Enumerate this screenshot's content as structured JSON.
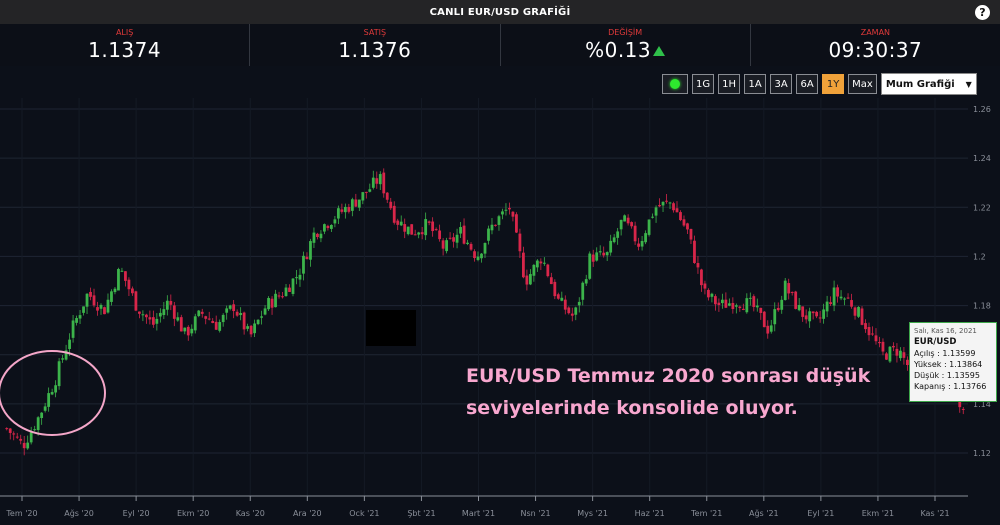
{
  "header": {
    "title": "CANLI EUR/USD GRAFİĞİ",
    "help_label": "?"
  },
  "stats": [
    {
      "label": "ALIŞ",
      "value": "1.1374"
    },
    {
      "label": "SATIŞ",
      "value": "1.1376"
    },
    {
      "label": "DEĞİŞİM",
      "value": "%0.13"
    },
    {
      "label": "ZAMAN",
      "value": "09:30:37"
    }
  ],
  "toolbar": {
    "ranges": [
      "1G",
      "1H",
      "1A",
      "3A",
      "6A",
      "1Y",
      "Max"
    ],
    "active_range": "1Y",
    "chart_type": "Mum Grafiği"
  },
  "colors": {
    "up": "#3cb44b",
    "down": "#d8264a",
    "accent": "#f0a23a",
    "annotation": "#f8a7cf"
  },
  "tooltip": {
    "date": "Salı, Kas 16, 2021",
    "symbol": "EUR/USD",
    "open": "Açılış : 1.13599",
    "high": "Yüksek : 1.13864",
    "low": "Düşük : 1.13595",
    "close": "Kapanış : 1.13766"
  },
  "annotation": {
    "line1": "EUR/USD Temmuz 2020 sonrası düşük",
    "line2": "seviyelerinde konsolide oluyor."
  },
  "chart_data": {
    "type": "candlestick",
    "x_tick_labels": [
      "Tem '20",
      "Ağs '20",
      "Eyl '20",
      "Ekm '20",
      "Kas '20",
      "Ara '20",
      "Ock '21",
      "Şbt '21",
      "Mart '21",
      "Nsn '21",
      "Mys '21",
      "Haz '21",
      "Tem '21",
      "Ağs '21",
      "Eyl '21",
      "Ekm '21",
      "Kas '21"
    ],
    "y_ticks": [
      1.12,
      1.14,
      1.16,
      1.18,
      1.2,
      1.22,
      1.24,
      1.26
    ],
    "y_tick_labels": [
      "1.12",
      "1.14",
      "1.16",
      "1.18",
      "1.2",
      "1.22",
      "1.24",
      "1.26"
    ],
    "ylim": [
      1.1,
      1.26
    ],
    "grid": true,
    "close_path": [
      1.13,
      1.123,
      1.135,
      1.15,
      1.17,
      1.185,
      1.178,
      1.195,
      1.18,
      1.172,
      1.182,
      1.168,
      1.177,
      1.172,
      1.18,
      1.167,
      1.18,
      1.185,
      1.193,
      1.21,
      1.215,
      1.22,
      1.225,
      1.232,
      1.215,
      1.21,
      1.213,
      1.203,
      1.21,
      1.2,
      1.213,
      1.22,
      1.19,
      1.2,
      1.182,
      1.175,
      1.2,
      1.2,
      1.215,
      1.205,
      1.22,
      1.222,
      1.21,
      1.185,
      1.18,
      1.182,
      1.18,
      1.17,
      1.188,
      1.177,
      1.173,
      1.185,
      1.182,
      1.172,
      1.16,
      1.162,
      1.151,
      1.148,
      1.158,
      1.137
    ]
  }
}
